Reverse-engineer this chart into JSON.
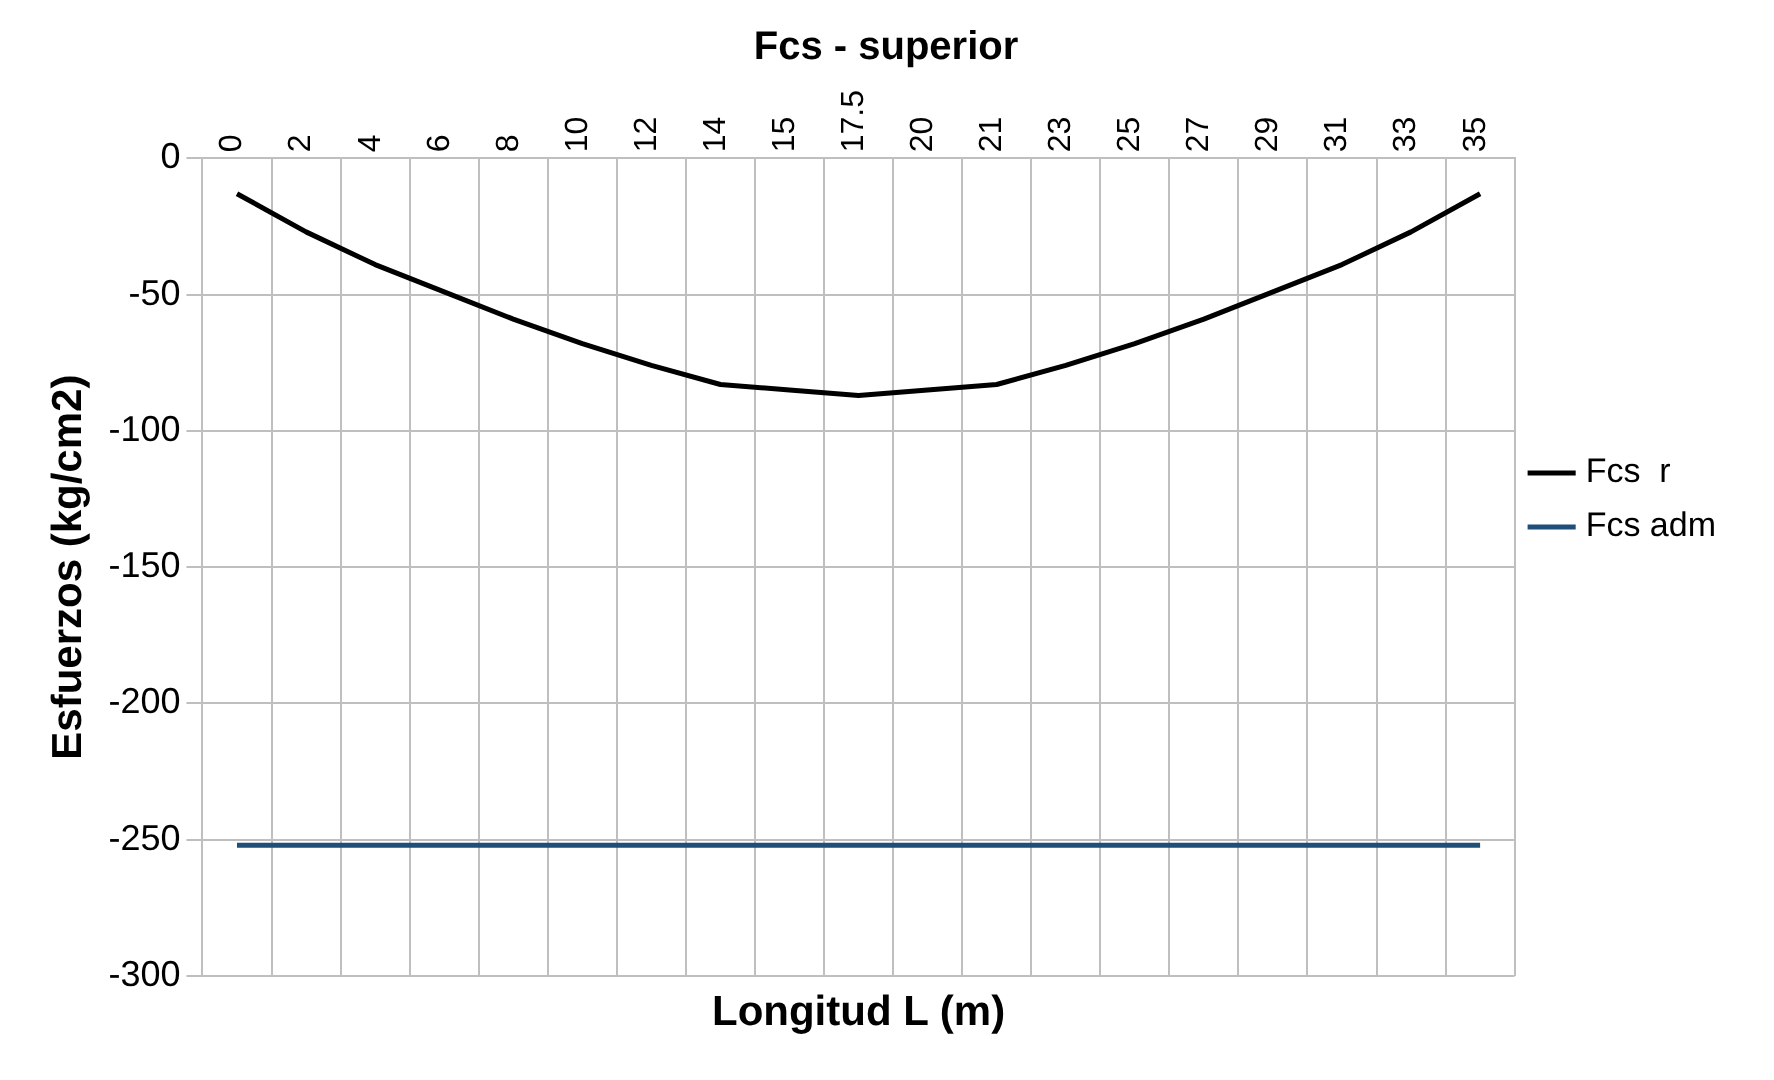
{
  "chart_data": {
    "type": "line",
    "title": "Fcs - superior",
    "xlabel": "Longitud L (m)",
    "ylabel": "Esfuerzos (kg/cm2)",
    "categories": [
      "0",
      "2",
      "4",
      "6",
      "8",
      "10",
      "12",
      "14",
      "15",
      "17.5",
      "20",
      "21",
      "23",
      "25",
      "27",
      "29",
      "31",
      "33",
      "35"
    ],
    "series": [
      {
        "name": "Fcs  r",
        "color": "#000000",
        "values": [
          -13,
          -27,
          -39,
          -49,
          -59,
          -68,
          -76,
          -83,
          -85,
          -87,
          -85,
          -83,
          -76,
          -68,
          -59,
          -49,
          -39,
          -27,
          -13
        ]
      },
      {
        "name": "Fcs adm",
        "color": "#1f4e79",
        "values": [
          -252,
          -252,
          -252,
          -252,
          -252,
          -252,
          -252,
          -252,
          -252,
          -252,
          -252,
          -252,
          -252,
          -252,
          -252,
          -252,
          -252,
          -252,
          -252
        ]
      }
    ],
    "ylim": [
      -300,
      0
    ],
    "yticks": [
      -300,
      -250,
      -200,
      -150,
      -100,
      -50,
      0
    ],
    "grid": true,
    "legend": "right",
    "marker": "none",
    "line_style": "solid"
  }
}
